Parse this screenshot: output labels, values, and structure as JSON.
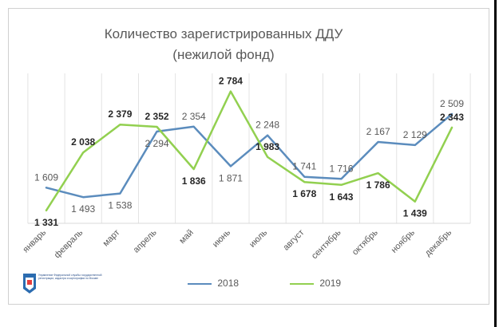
{
  "chart_data": {
    "type": "line",
    "title": "Количество зарегистрированных ДДУ",
    "subtitle": "(нежилой фонд)",
    "categories": [
      "январь",
      "февраль",
      "март",
      "апрель",
      "май",
      "июнь",
      "июль",
      "август",
      "сентябрь",
      "октябрь",
      "ноябрь",
      "декабрь"
    ],
    "series": [
      {
        "name": "2018",
        "color": "#5b8cbd",
        "values": [
          1609,
          1493,
          1538,
          2294,
          2354,
          1871,
          2248,
          1741,
          1716,
          2167,
          2129,
          2509
        ],
        "labels": [
          "1 609",
          "1 493",
          "1 538",
          "2 294",
          "2 354",
          "1 871",
          "2 248",
          "1 741",
          "1 716",
          "2 167",
          "2 129",
          "2 509"
        ]
      },
      {
        "name": "2019",
        "color": "#92d050",
        "values": [
          1331,
          2038,
          2379,
          2352,
          1836,
          2784,
          1983,
          1678,
          1643,
          1786,
          1439,
          2343
        ],
        "labels": [
          "1 331",
          "2 038",
          "2 379",
          "2 352",
          "1 836",
          "2 784",
          "1 983",
          "1 678",
          "1 643",
          "1 786",
          "1 439",
          "2 343"
        ]
      }
    ],
    "ylim": [
      1300,
      2800
    ],
    "grid": true,
    "legend": "bottom"
  },
  "logo": {
    "caption": "Управление Федеральной службы государственной регистрации, кадастра и картографии по Москве"
  }
}
